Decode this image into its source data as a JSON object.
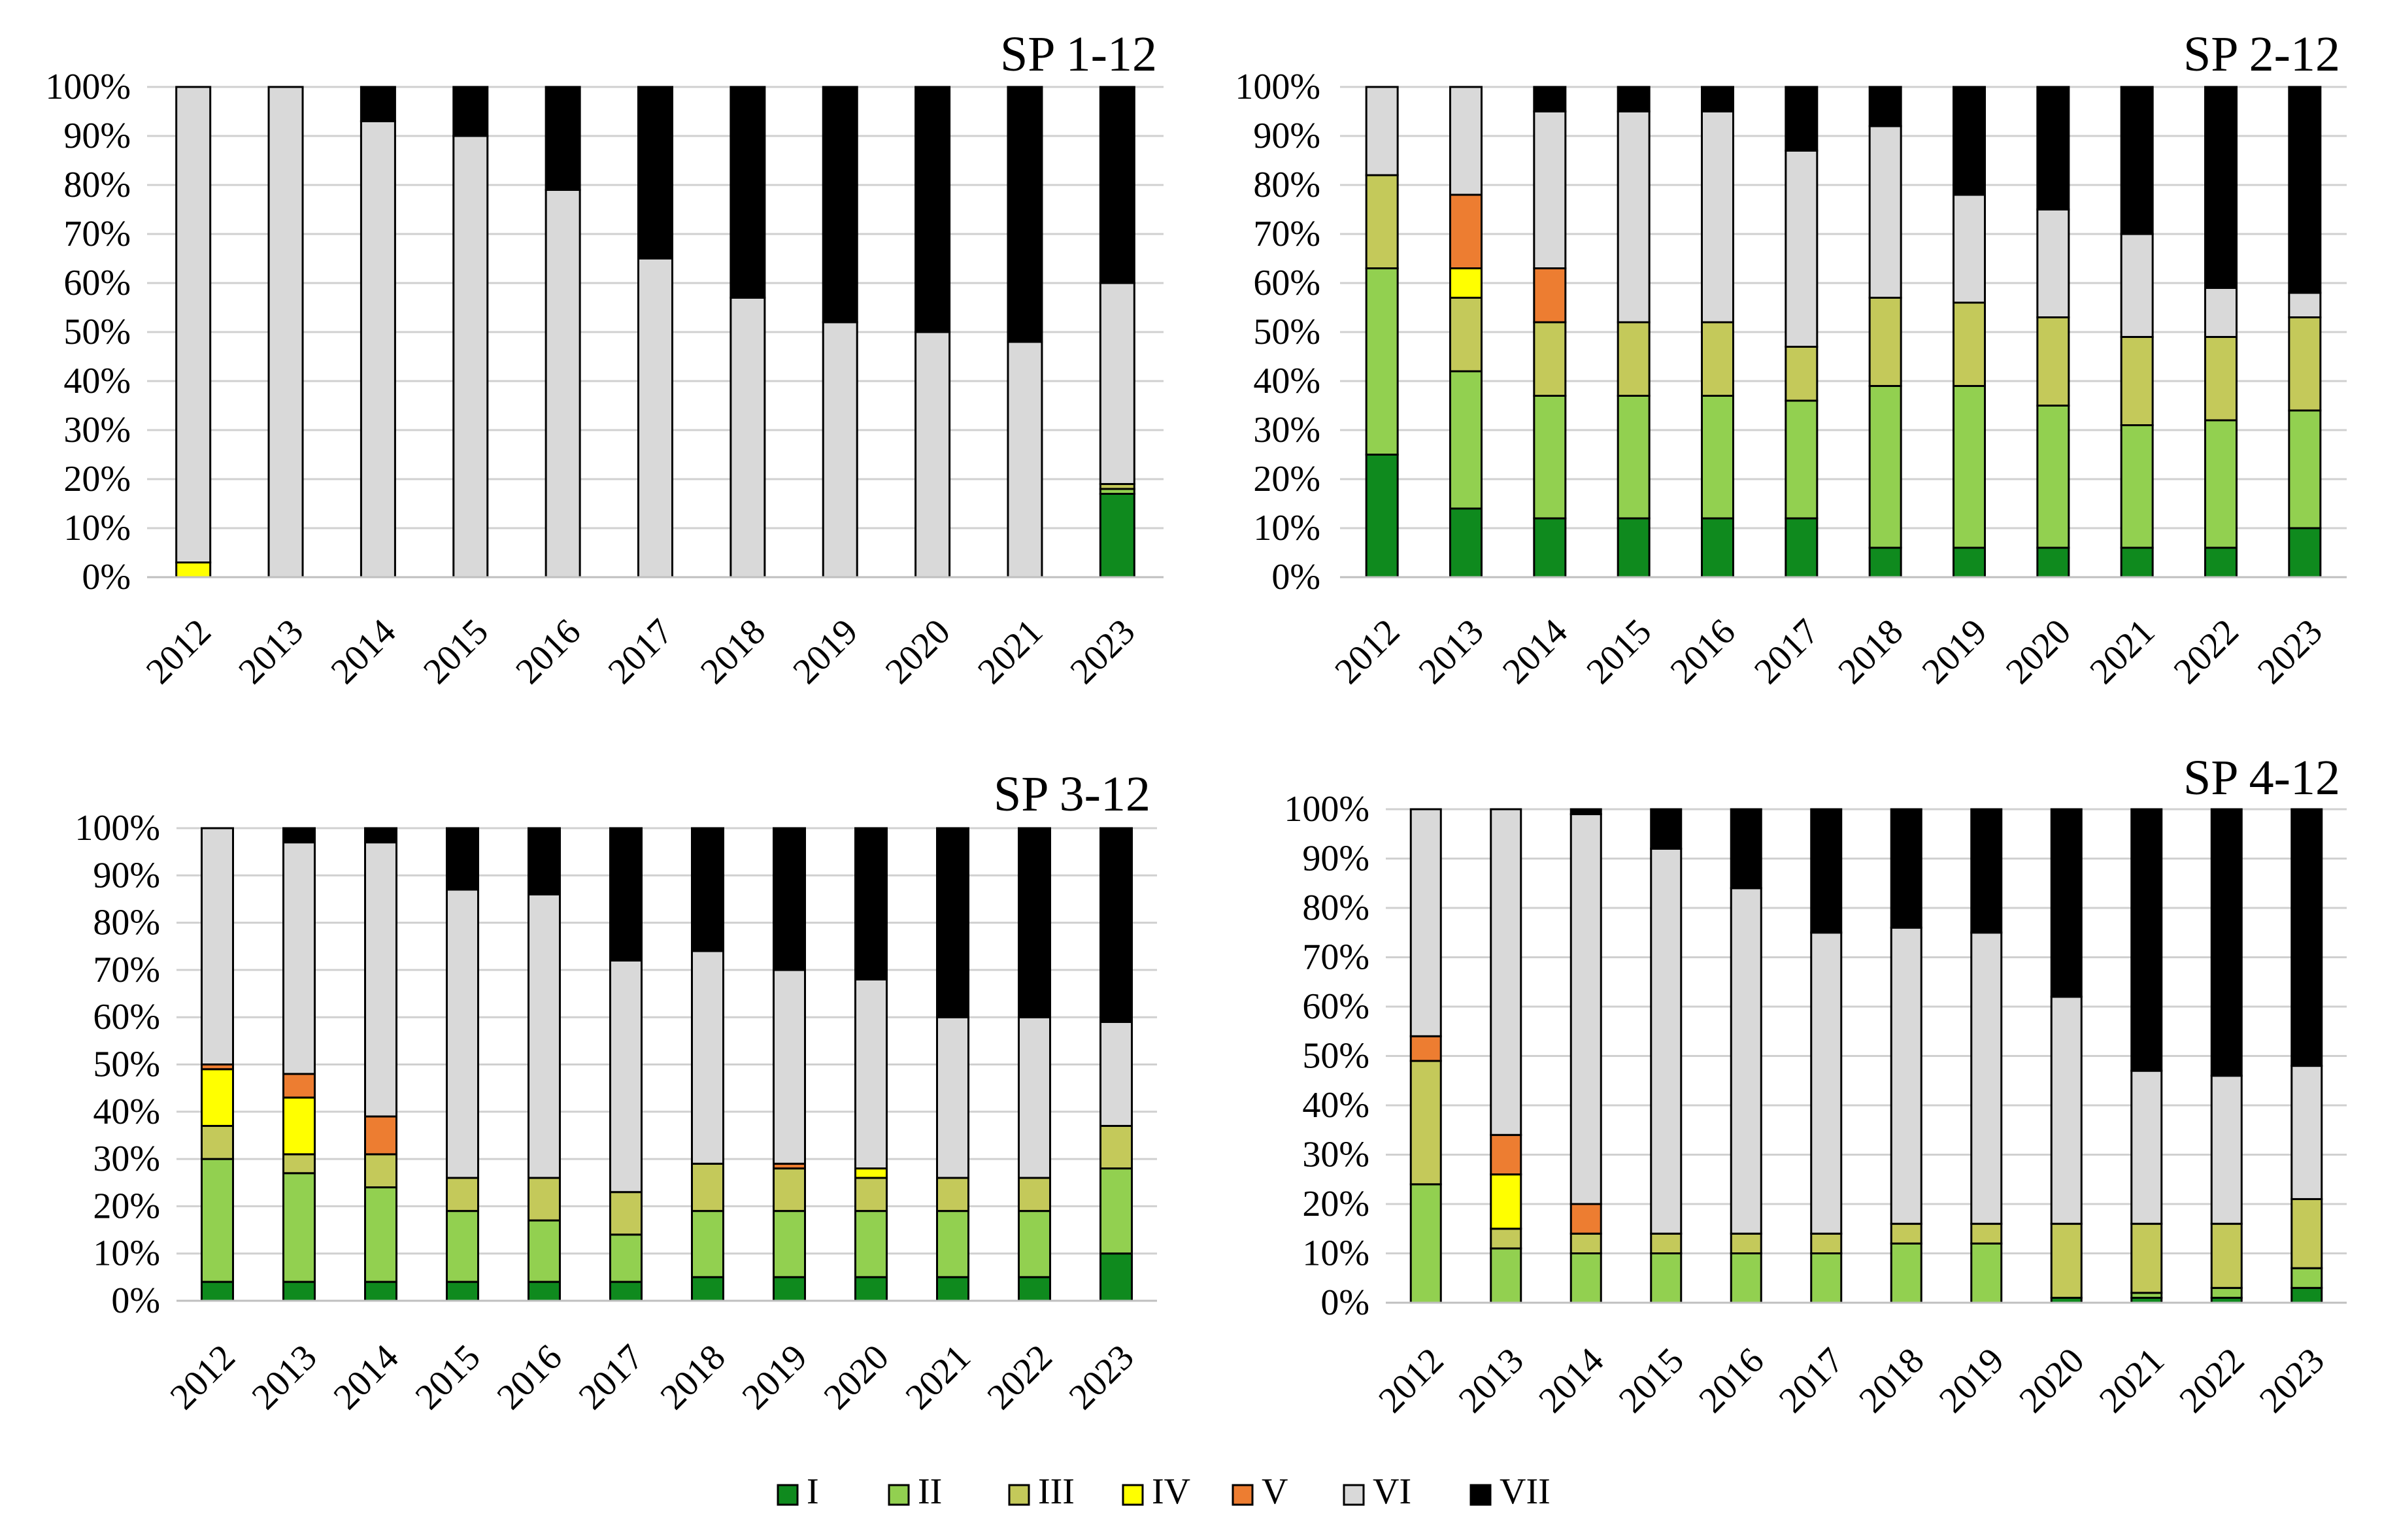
{
  "figure": {
    "legend_label_I": "I",
    "legend_label_II": "II",
    "legend_label_III": "III",
    "legend_label_IV": "IV",
    "legend_label_V": "V",
    "legend_label_VI": "VI",
    "legend_label_VII": "VII"
  },
  "chart_data": [
    {
      "type": "bar",
      "stacked": true,
      "title": "SP 1-12",
      "categories": [
        "2012",
        "2013",
        "2014",
        "2015",
        "2016",
        "2017",
        "2018",
        "2019",
        "2020",
        "2021",
        "2023"
      ],
      "ylim": [
        0,
        100
      ],
      "yticks": [
        "0%",
        "10%",
        "20%",
        "30%",
        "40%",
        "50%",
        "60%",
        "70%",
        "80%",
        "90%",
        "100%"
      ],
      "grid": true,
      "series": [
        {
          "name": "I",
          "color": "#0f8a1e",
          "values": [
            0,
            0,
            0,
            0,
            0,
            0,
            0,
            0,
            0,
            0,
            17
          ]
        },
        {
          "name": "II",
          "color": "#92d050",
          "values": [
            0,
            0,
            0,
            0,
            0,
            0,
            0,
            0,
            0,
            0,
            1
          ]
        },
        {
          "name": "III",
          "color": "#c4c95a",
          "values": [
            0,
            0,
            0,
            0,
            0,
            0,
            0,
            0,
            0,
            0,
            1
          ]
        },
        {
          "name": "IV",
          "color": "#ffff00",
          "values": [
            3,
            0,
            0,
            0,
            0,
            0,
            0,
            0,
            0,
            0,
            0
          ]
        },
        {
          "name": "V",
          "color": "#ed7d31",
          "values": [
            0,
            0,
            0,
            0,
            0,
            0,
            0,
            0,
            0,
            0,
            0
          ]
        },
        {
          "name": "VI",
          "color": "#d9d9d9",
          "values": [
            97,
            100,
            93,
            90,
            79,
            65,
            57,
            52,
            50,
            48,
            41
          ]
        },
        {
          "name": "VII",
          "color": "#000000",
          "values": [
            0,
            0,
            7,
            10,
            21,
            35,
            43,
            48,
            50,
            52,
            40
          ]
        }
      ]
    },
    {
      "type": "bar",
      "stacked": true,
      "title": "SP 2-12",
      "categories": [
        "2012",
        "2013",
        "2014",
        "2015",
        "2016",
        "2017",
        "2018",
        "2019",
        "2020",
        "2021",
        "2022",
        "2023"
      ],
      "ylim": [
        0,
        100
      ],
      "yticks": [
        "0%",
        "10%",
        "20%",
        "30%",
        "40%",
        "50%",
        "60%",
        "70%",
        "80%",
        "90%",
        "100%"
      ],
      "grid": true,
      "series": [
        {
          "name": "I",
          "color": "#0f8a1e",
          "values": [
            25,
            14,
            12,
            12,
            12,
            12,
            6,
            6,
            6,
            6,
            6,
            10
          ]
        },
        {
          "name": "II",
          "color": "#92d050",
          "values": [
            38,
            28,
            25,
            25,
            25,
            24,
            33,
            33,
            29,
            25,
            26,
            24
          ]
        },
        {
          "name": "III",
          "color": "#c4c95a",
          "values": [
            19,
            15,
            15,
            15,
            15,
            11,
            18,
            17,
            18,
            18,
            17,
            19
          ]
        },
        {
          "name": "IV",
          "color": "#ffff00",
          "values": [
            0,
            6,
            0,
            0,
            0,
            0,
            0,
            0,
            0,
            0,
            0,
            0
          ]
        },
        {
          "name": "V",
          "color": "#ed7d31",
          "values": [
            0,
            15,
            11,
            0,
            0,
            0,
            0,
            0,
            0,
            0,
            0,
            0
          ]
        },
        {
          "name": "VI",
          "color": "#d9d9d9",
          "values": [
            18,
            22,
            32,
            43,
            43,
            40,
            35,
            22,
            22,
            21,
            10,
            5
          ]
        },
        {
          "name": "VII",
          "color": "#000000",
          "values": [
            0,
            0,
            5,
            5,
            5,
            13,
            8,
            22,
            25,
            30,
            41,
            42
          ]
        }
      ]
    },
    {
      "type": "bar",
      "stacked": true,
      "title": "SP 3-12",
      "categories": [
        "2012",
        "2013",
        "2014",
        "2015",
        "2016",
        "2017",
        "2018",
        "2019",
        "2020",
        "2021",
        "2022",
        "2023"
      ],
      "ylim": [
        0,
        100
      ],
      "yticks": [
        "0%",
        "10%",
        "20%",
        "30%",
        "40%",
        "50%",
        "60%",
        "70%",
        "80%",
        "90%",
        "100%"
      ],
      "grid": true,
      "series": [
        {
          "name": "I",
          "color": "#0f8a1e",
          "values": [
            4,
            4,
            4,
            4,
            4,
            4,
            5,
            5,
            5,
            5,
            5,
            10
          ]
        },
        {
          "name": "II",
          "color": "#92d050",
          "values": [
            26,
            23,
            20,
            15,
            13,
            10,
            14,
            14,
            14,
            14,
            14,
            18
          ]
        },
        {
          "name": "III",
          "color": "#c4c95a",
          "values": [
            7,
            4,
            7,
            7,
            9,
            9,
            10,
            9,
            7,
            7,
            7,
            9
          ]
        },
        {
          "name": "IV",
          "color": "#ffff00",
          "values": [
            12,
            12,
            0,
            0,
            0,
            0,
            0,
            0,
            2,
            0,
            0,
            0
          ]
        },
        {
          "name": "V",
          "color": "#ed7d31",
          "values": [
            1,
            5,
            8,
            0,
            0,
            0,
            0,
            1,
            0,
            0,
            0,
            0
          ]
        },
        {
          "name": "VI",
          "color": "#d9d9d9",
          "values": [
            50,
            49,
            58,
            61,
            60,
            49,
            45,
            41,
            40,
            34,
            34,
            22
          ]
        },
        {
          "name": "VII",
          "color": "#000000",
          "values": [
            0,
            3,
            3,
            13,
            14,
            28,
            26,
            30,
            32,
            40,
            40,
            41
          ]
        }
      ]
    },
    {
      "type": "bar",
      "stacked": true,
      "title": "SP 4-12",
      "categories": [
        "2012",
        "2013",
        "2014",
        "2015",
        "2016",
        "2017",
        "2018",
        "2019",
        "2020",
        "2021",
        "2022",
        "2023"
      ],
      "ylim": [
        0,
        100
      ],
      "yticks": [
        "0%",
        "10%",
        "20%",
        "30%",
        "40%",
        "50%",
        "60%",
        "70%",
        "80%",
        "90%",
        "100%"
      ],
      "grid": true,
      "series": [
        {
          "name": "I",
          "color": "#0f8a1e",
          "values": [
            0,
            0,
            0,
            0,
            0,
            0,
            0,
            0,
            1,
            1,
            1,
            3
          ]
        },
        {
          "name": "II",
          "color": "#92d050",
          "values": [
            24,
            11,
            10,
            10,
            10,
            10,
            12,
            12,
            0,
            1,
            2,
            4
          ]
        },
        {
          "name": "III",
          "color": "#c4c95a",
          "values": [
            25,
            4,
            4,
            4,
            4,
            4,
            4,
            4,
            15,
            14,
            13,
            14
          ]
        },
        {
          "name": "IV",
          "color": "#ffff00",
          "values": [
            0,
            11,
            0,
            0,
            0,
            0,
            0,
            0,
            0,
            0,
            0,
            0
          ]
        },
        {
          "name": "V",
          "color": "#ed7d31",
          "values": [
            5,
            8,
            6,
            0,
            0,
            0,
            0,
            0,
            0,
            0,
            0,
            0
          ]
        },
        {
          "name": "VI",
          "color": "#d9d9d9",
          "values": [
            46,
            66,
            79,
            78,
            70,
            61,
            60,
            59,
            46,
            31,
            30,
            27
          ]
        },
        {
          "name": "VII",
          "color": "#000000",
          "values": [
            0,
            0,
            1,
            8,
            16,
            25,
            24,
            25,
            38,
            53,
            54,
            52
          ]
        }
      ]
    }
  ]
}
